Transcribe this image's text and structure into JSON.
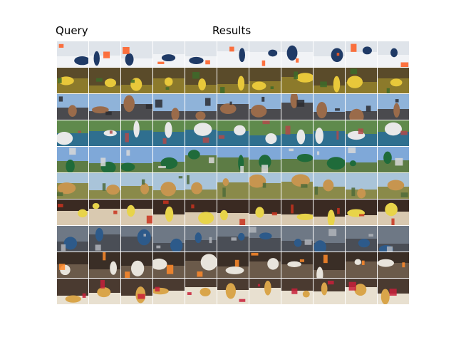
{
  "headings": {
    "query": "Query",
    "results": "Results"
  },
  "layout_counts": {
    "query_columns": 4,
    "result_columns": 7,
    "rows": 10
  },
  "rows": [
    {
      "theme": "snow-skiing",
      "palette": {
        "sky": "#dfe4ea",
        "ground": "#f1f3f6",
        "accent": "#1f3a66",
        "extra": "#ff5a1f"
      }
    },
    {
      "theme": "fruit-market",
      "palette": {
        "sky": "#5a4b2a",
        "ground": "#8c7a2b",
        "accent": "#e8c83a",
        "extra": "#3d6b2a"
      }
    },
    {
      "theme": "city-street",
      "palette": {
        "sky": "#8fb3d9",
        "ground": "#4a4a4e",
        "accent": "#9a6b4a",
        "extra": "#2c2c30"
      }
    },
    {
      "theme": "tennis-court",
      "palette": {
        "sky": "#5f8a4c",
        "ground": "#2f6f8f",
        "accent": "#e8e8e8",
        "extra": "#b04a4a"
      }
    },
    {
      "theme": "street-sign",
      "palette": {
        "sky": "#7fa8d8",
        "ground": "#5d7c45",
        "accent": "#1f6b3a",
        "extra": "#d8d8d8"
      }
    },
    {
      "theme": "giraffe-savanna",
      "palette": {
        "sky": "#a9c4d9",
        "ground": "#8a8a4a",
        "accent": "#c7954f",
        "extra": "#4f6b3a"
      }
    },
    {
      "theme": "food-plate",
      "palette": {
        "sky": "#3a2a22",
        "ground": "#d9c9b0",
        "accent": "#e8d44a",
        "extra": "#c8321e"
      }
    },
    {
      "theme": "skateboard",
      "palette": {
        "sky": "#6e7885",
        "ground": "#4a4e56",
        "accent": "#2d5a8a",
        "extra": "#b0b4ba"
      }
    },
    {
      "theme": "cat",
      "palette": {
        "sky": "#3a2e26",
        "ground": "#6b5a4a",
        "accent": "#e8e4dc",
        "extra": "#ff8a2a"
      }
    },
    {
      "theme": "cake",
      "palette": {
        "sky": "#4a3a30",
        "ground": "#e8e0d0",
        "accent": "#d9a54a",
        "extra": "#c8203a"
      }
    }
  ]
}
